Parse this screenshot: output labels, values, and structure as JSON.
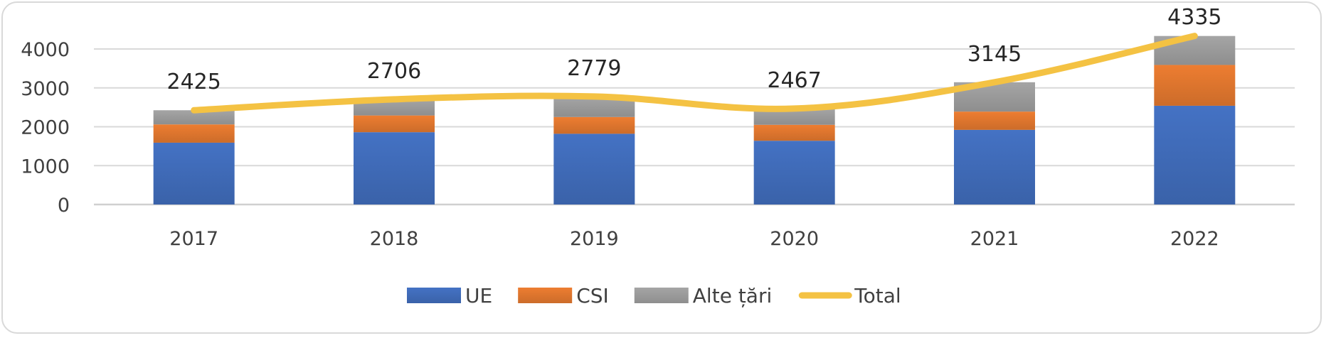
{
  "chart_data": {
    "type": "bar",
    "stacked": true,
    "categories": [
      "2017",
      "2018",
      "2019",
      "2020",
      "2021",
      "2022"
    ],
    "series": [
      {
        "name": "UE",
        "values": [
          1590,
          1860,
          1820,
          1640,
          1920,
          2540
        ],
        "color": "#4472c4"
      },
      {
        "name": "CSI",
        "values": [
          470,
          430,
          430,
          410,
          470,
          1050
        ],
        "color": "#ed7d31"
      },
      {
        "name": "Alte țări",
        "values": [
          365,
          416,
          529,
          417,
          755,
          745
        ],
        "color": "#a5a5a5"
      }
    ],
    "line_series": {
      "name": "Total",
      "values": [
        2425,
        2706,
        2779,
        2467,
        3145,
        4335
      ],
      "color": "#f4c243",
      "smooth": true
    },
    "data_labels": [
      "2425",
      "2706",
      "2779",
      "2467",
      "3145",
      "4335"
    ],
    "y_ticks": [
      "0",
      "1000",
      "2000",
      "3000",
      "4000"
    ],
    "ylim": [
      0,
      4000
    ],
    "grid": true,
    "legend_position": "bottom",
    "legend": [
      "UE",
      "CSI",
      "Alte țări",
      "Total"
    ]
  }
}
